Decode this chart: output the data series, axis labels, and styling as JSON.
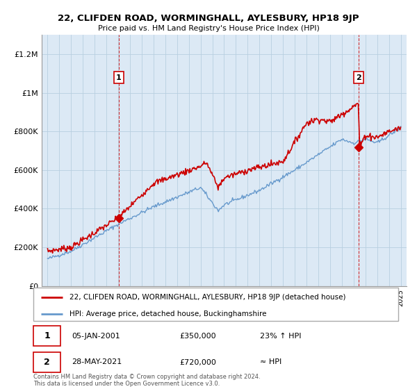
{
  "title": "22, CLIFDEN ROAD, WORMINGHALL, AYLESBURY, HP18 9JP",
  "subtitle": "Price paid vs. HM Land Registry's House Price Index (HPI)",
  "red_label": "22, CLIFDEN ROAD, WORMINGHALL, AYLESBURY, HP18 9JP (detached house)",
  "blue_label": "HPI: Average price, detached house, Buckinghamshire",
  "annotation1": {
    "num": "1",
    "date": "05-JAN-2001",
    "price": "£350,000",
    "change": "23% ↑ HPI"
  },
  "annotation2": {
    "num": "2",
    "date": "28-MAY-2021",
    "price": "£720,000",
    "change": "≈ HPI"
  },
  "footer": "Contains HM Land Registry data © Crown copyright and database right 2024.\nThis data is licensed under the Open Government Licence v3.0.",
  "ylim": [
    0,
    1300000
  ],
  "yticks": [
    0,
    200000,
    400000,
    600000,
    800000,
    1000000,
    1200000
  ],
  "ytick_labels": [
    "£0",
    "£200K",
    "£400K",
    "£600K",
    "£800K",
    "£1M",
    "£1.2M"
  ],
  "red_color": "#cc0000",
  "blue_color": "#6699cc",
  "background_color": "#ffffff",
  "plot_bg_color": "#dce9f5",
  "grid_color": "#b8cfe0",
  "marker1_x": 2001.04,
  "marker1_y": 350000,
  "marker2_x": 2021.42,
  "marker2_y": 720000,
  "xmin": 1994.5,
  "xmax": 2025.5
}
